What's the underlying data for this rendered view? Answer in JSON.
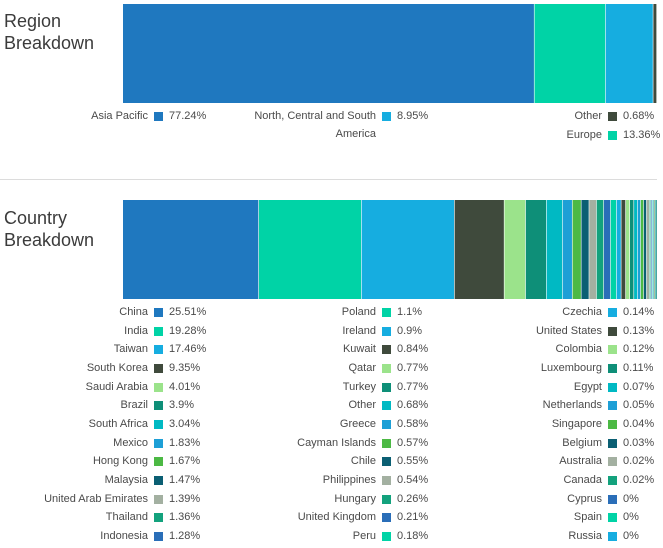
{
  "sections": {
    "region_title_line1": "Region",
    "region_title_line2": "Breakdown",
    "country_title_line1": "Country",
    "country_title_line2": "Breakdown"
  },
  "chart_data": [
    {
      "type": "bar",
      "subtype": "stacked-horizontal-100",
      "title": "Region Breakdown",
      "segments": [
        {
          "name": "Asia Pacific",
          "value": 77.24,
          "label": "77.24%",
          "color": "#1f78bf"
        },
        {
          "name": "Europe",
          "value": 13.36,
          "label": "13.36%",
          "color": "#00d3a6"
        },
        {
          "name": "North, Central and South America",
          "value": 8.95,
          "label": "8.95%",
          "color": "#16ade0"
        },
        {
          "name": "Other",
          "value": 0.68,
          "label": "0.68%",
          "color": "#3f4a3c"
        }
      ]
    },
    {
      "type": "bar",
      "subtype": "stacked-horizontal-100",
      "title": "Country Breakdown",
      "segments": [
        {
          "name": "China",
          "value": 25.51,
          "label": "25.51%",
          "color": "#1f78bf"
        },
        {
          "name": "India",
          "value": 19.28,
          "label": "19.28%",
          "color": "#00d3a6"
        },
        {
          "name": "Taiwan",
          "value": 17.46,
          "label": "17.46%",
          "color": "#16ade0"
        },
        {
          "name": "South Korea",
          "value": 9.35,
          "label": "9.35%",
          "color": "#3f4a3c"
        },
        {
          "name": "Saudi Arabia",
          "value": 4.01,
          "label": "4.01%",
          "color": "#9be38b"
        },
        {
          "name": "Brazil",
          "value": 3.9,
          "label": "3.9%",
          "color": "#0e8f78"
        },
        {
          "name": "South Africa",
          "value": 3.04,
          "label": "3.04%",
          "color": "#00b9c3"
        },
        {
          "name": "Mexico",
          "value": 1.83,
          "label": "1.83%",
          "color": "#1d9fd6"
        },
        {
          "name": "Hong Kong",
          "value": 1.67,
          "label": "1.67%",
          "color": "#4cb944"
        },
        {
          "name": "Malaysia",
          "value": 1.47,
          "label": "1.47%",
          "color": "#0b5f73"
        },
        {
          "name": "United Arab Emirates",
          "value": 1.39,
          "label": "1.39%",
          "color": "#a3b0a1"
        },
        {
          "name": "Thailand",
          "value": 1.36,
          "label": "1.36%",
          "color": "#13a27d"
        },
        {
          "name": "Indonesia",
          "value": 1.28,
          "label": "1.28%",
          "color": "#2a6eb8"
        },
        {
          "name": "Poland",
          "value": 1.1,
          "label": "1.1%",
          "color": "#00d3a6"
        },
        {
          "name": "Ireland",
          "value": 0.9,
          "label": "0.9%",
          "color": "#16ade0"
        },
        {
          "name": "Kuwait",
          "value": 0.84,
          "label": "0.84%",
          "color": "#3f4a3c"
        },
        {
          "name": "Qatar",
          "value": 0.77,
          "label": "0.77%",
          "color": "#9be38b"
        },
        {
          "name": "Turkey",
          "value": 0.77,
          "label": "0.77%",
          "color": "#0e8f78"
        },
        {
          "name": "Other",
          "value": 0.68,
          "label": "0.68%",
          "color": "#00b9c3"
        },
        {
          "name": "Greece",
          "value": 0.58,
          "label": "0.58%",
          "color": "#1d9fd6"
        },
        {
          "name": "Cayman Islands",
          "value": 0.57,
          "label": "0.57%",
          "color": "#4cb944"
        },
        {
          "name": "Chile",
          "value": 0.55,
          "label": "0.55%",
          "color": "#0b5f73"
        },
        {
          "name": "Philippines",
          "value": 0.54,
          "label": "0.54%",
          "color": "#a3b0a1"
        },
        {
          "name": "Hungary",
          "value": 0.26,
          "label": "0.26%",
          "color": "#13a27d"
        },
        {
          "name": "United Kingdom",
          "value": 0.21,
          "label": "0.21%",
          "color": "#2a6eb8"
        },
        {
          "name": "Peru",
          "value": 0.18,
          "label": "0.18%",
          "color": "#00d3a6"
        },
        {
          "name": "Czechia",
          "value": 0.14,
          "label": "0.14%",
          "color": "#16ade0"
        },
        {
          "name": "United States",
          "value": 0.13,
          "label": "0.13%",
          "color": "#3f4a3c"
        },
        {
          "name": "Colombia",
          "value": 0.12,
          "label": "0.12%",
          "color": "#9be38b"
        },
        {
          "name": "Luxembourg",
          "value": 0.11,
          "label": "0.11%",
          "color": "#0e8f78"
        },
        {
          "name": "Egypt",
          "value": 0.07,
          "label": "0.07%",
          "color": "#00b9c3"
        },
        {
          "name": "Netherlands",
          "value": 0.05,
          "label": "0.05%",
          "color": "#1d9fd6"
        },
        {
          "name": "Singapore",
          "value": 0.04,
          "label": "0.04%",
          "color": "#4cb944"
        },
        {
          "name": "Belgium",
          "value": 0.03,
          "label": "0.03%",
          "color": "#0b5f73"
        },
        {
          "name": "Australia",
          "value": 0.02,
          "label": "0.02%",
          "color": "#a3b0a1"
        },
        {
          "name": "Canada",
          "value": 0.02,
          "label": "0.02%",
          "color": "#13a27d"
        },
        {
          "name": "Cyprus",
          "value": 0,
          "label": "0%",
          "color": "#2a6eb8"
        },
        {
          "name": "Spain",
          "value": 0,
          "label": "0%",
          "color": "#00d3a6"
        },
        {
          "name": "Russia",
          "value": 0,
          "label": "0%",
          "color": "#16ade0"
        }
      ]
    }
  ]
}
